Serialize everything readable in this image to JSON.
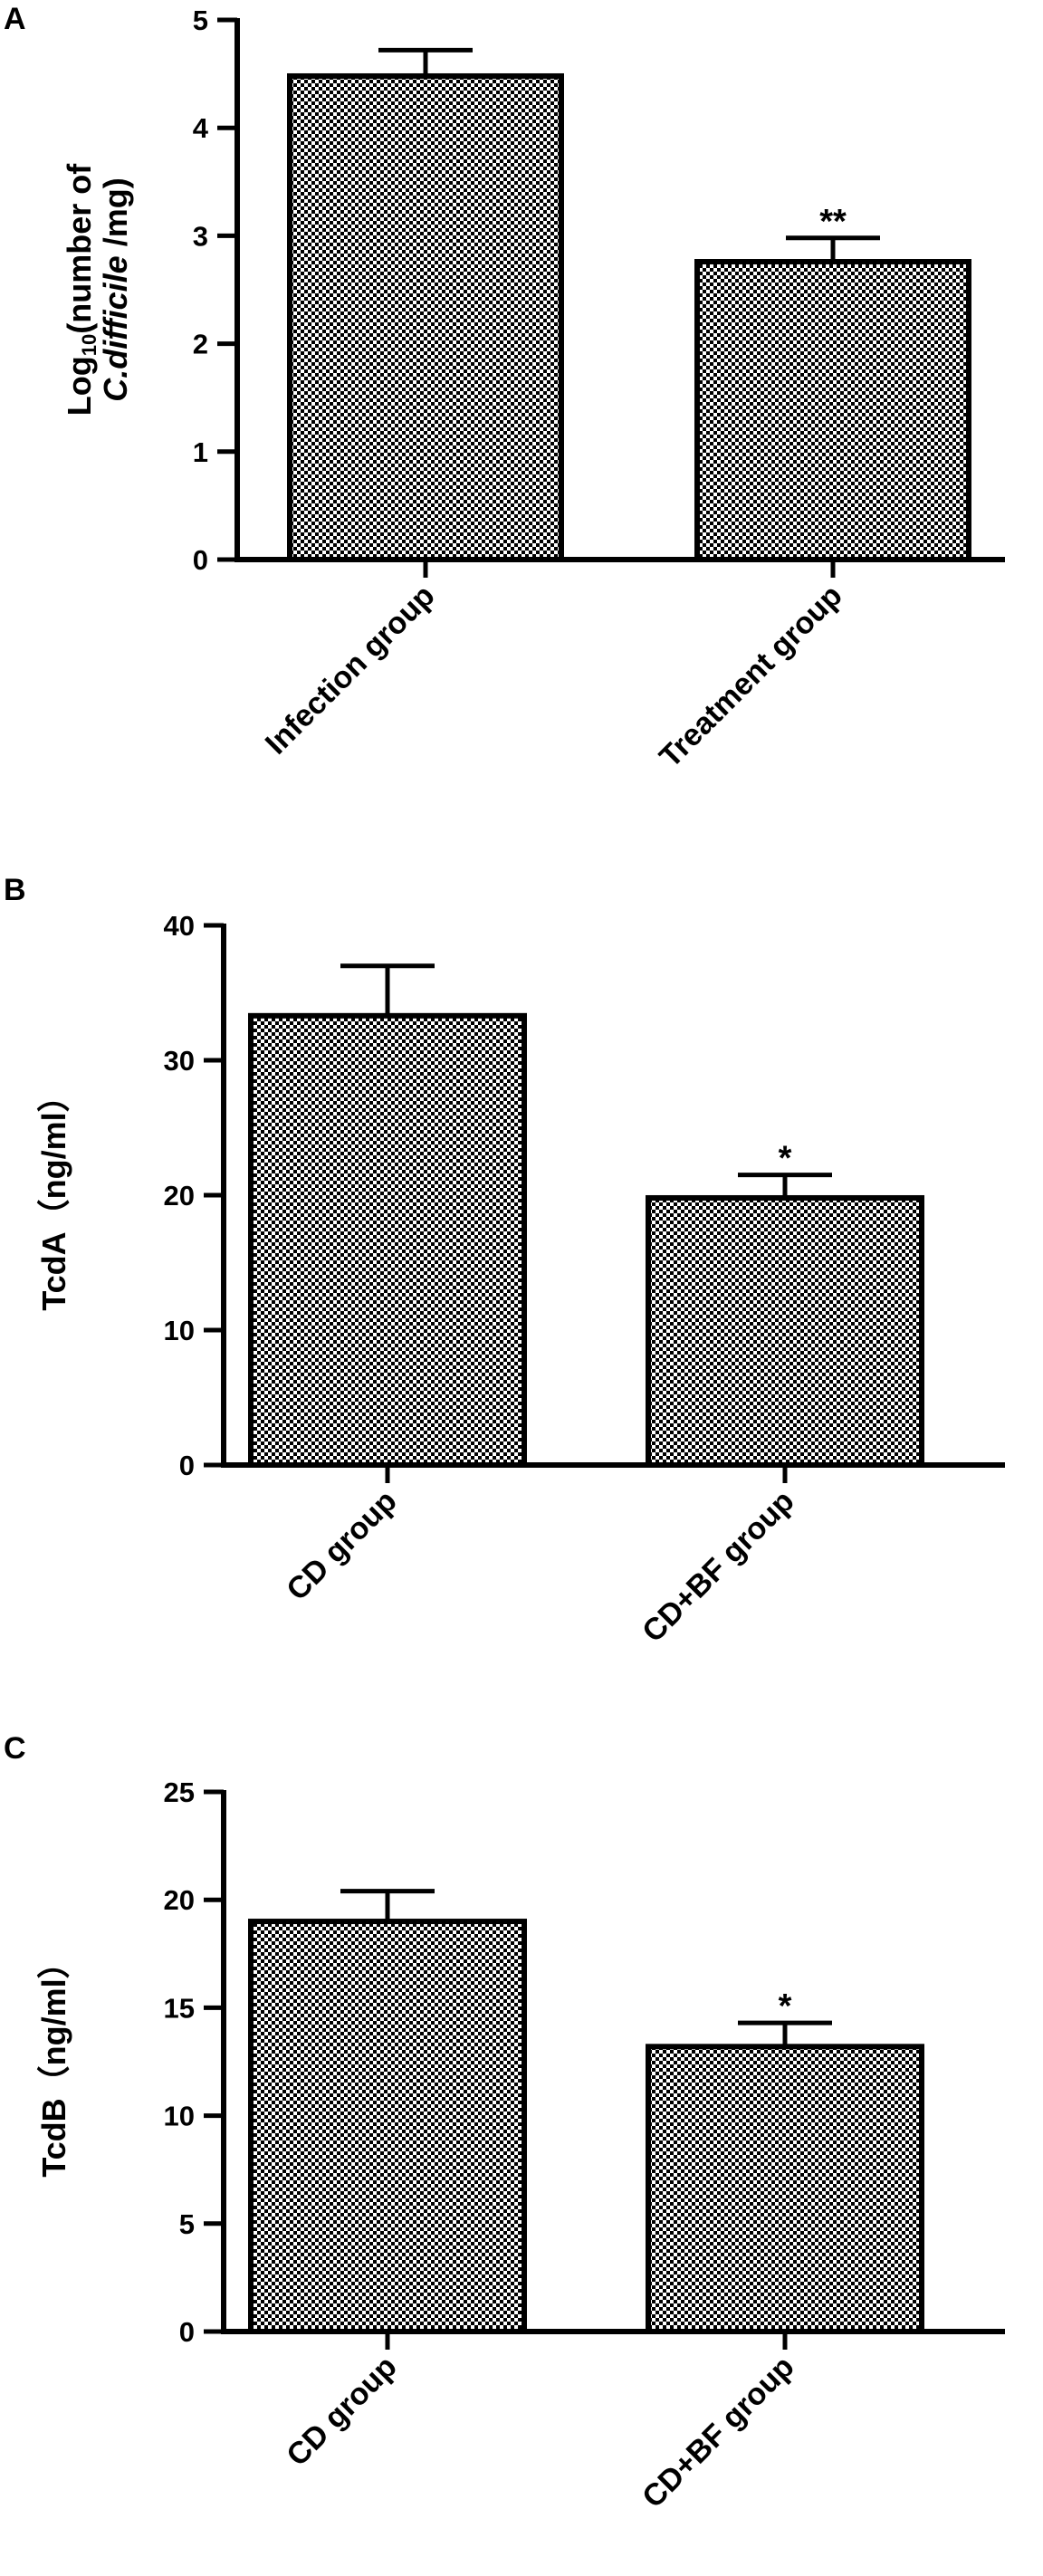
{
  "colors": {
    "axis": "#000000",
    "bar_fill": "#ffffff",
    "bar_pattern": "#000000"
  },
  "chart_data": [
    {
      "panel": "A",
      "type": "bar",
      "categories": [
        "Infection group",
        "Treatment group"
      ],
      "values": [
        4.48,
        2.76
      ],
      "errors": [
        0.24,
        0.22
      ],
      "significance": [
        "",
        "**"
      ],
      "ylabel_parts": [
        "Log",
        "10",
        "(number of",
        "C.difficile",
        " /mg)"
      ],
      "ylim": [
        0,
        5
      ],
      "yticks": [
        0,
        1,
        2,
        3,
        4,
        5
      ],
      "grid": false,
      "legend": "none"
    },
    {
      "panel": "B",
      "type": "bar",
      "categories": [
        "CD group",
        "CD+BF group"
      ],
      "values": [
        33.3,
        19.8
      ],
      "errors": [
        3.7,
        1.7
      ],
      "significance": [
        "",
        "*"
      ],
      "ylabel": "TcdA（ng/ml）",
      "ylim": [
        0,
        40
      ],
      "yticks": [
        0,
        10,
        20,
        30,
        40
      ],
      "grid": false,
      "legend": "none"
    },
    {
      "panel": "C",
      "type": "bar",
      "categories": [
        "CD group",
        "CD+BF group"
      ],
      "values": [
        19.0,
        13.2
      ],
      "errors": [
        1.4,
        1.1
      ],
      "significance": [
        "",
        "*"
      ],
      "ylabel": "TcdB（ng/ml）",
      "ylim": [
        0,
        25
      ],
      "yticks": [
        0,
        5,
        10,
        15,
        20,
        25
      ],
      "grid": false,
      "legend": "none"
    }
  ]
}
